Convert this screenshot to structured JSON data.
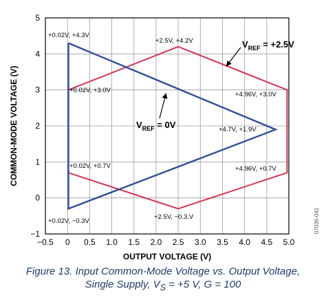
{
  "chart_data": {
    "type": "line",
    "xlabel": "OUTPUT VOLTAGE (V)",
    "ylabel": "COMMON-MODE VOLTAGE (V)",
    "xlim": [
      -0.5,
      5.0
    ],
    "ylim": [
      -1,
      5
    ],
    "x_ticks": [
      -0.5,
      0,
      0.5,
      1.0,
      1.5,
      2.0,
      2.5,
      3.0,
      3.5,
      4.0,
      4.5,
      5.0
    ],
    "x_tick_labels": [
      "−0.5",
      "0",
      "0.5",
      "1.0",
      "1.5",
      "2.0",
      "2.5",
      "3.0",
      "3.5",
      "4.0",
      "4.5",
      "5.0"
    ],
    "y_ticks": [
      -1,
      0,
      1,
      2,
      3,
      4,
      5
    ],
    "y_tick_labels": [
      "−1",
      "0",
      "1",
      "2",
      "3",
      "4",
      "5"
    ],
    "grid": true,
    "series": [
      {
        "color": "#d6334f",
        "x": [
          0.02,
          2.5,
          4.96,
          4.96,
          2.5,
          0.02,
          0.02
        ],
        "y": [
          3.0,
          4.2,
          3.0,
          0.7,
          -0.3,
          0.7,
          3.0
        ]
      },
      {
        "color": "#2f4e9a",
        "x": [
          0.02,
          4.7,
          0.02,
          0.02
        ],
        "y": [
          4.3,
          1.9,
          -0.3,
          4.3
        ]
      }
    ],
    "point_labels": [
      {
        "text": "+0.02V, +4.3V"
      },
      {
        "text": "+2.5V, +4.2V"
      },
      {
        "text": "+0.02V, +3.0V"
      },
      {
        "text": "+4.96V, +3.0V"
      },
      {
        "text": "+4.7V, +1.9V"
      },
      {
        "text": "+0.02V, +0.7V"
      },
      {
        "text": "+4.96V, +0.7V"
      },
      {
        "text": "+0.02V, −0.3V"
      },
      {
        "text": "+2.5V, −0.3.V"
      }
    ],
    "annotations": [
      {
        "main": "V",
        "sub": "REF",
        "rest": " = +2.5V"
      },
      {
        "main": "V",
        "sub": "REF",
        "rest": " = 0V"
      }
    ],
    "figure_code": "07036-041"
  },
  "caption": {
    "line1": "Figure 13. Input Common-Mode Voltage vs. Output Voltage,",
    "line2": "Single Supply, V",
    "line2_sub": "S",
    "line2_rest": " = +5 V, G = 100"
  }
}
